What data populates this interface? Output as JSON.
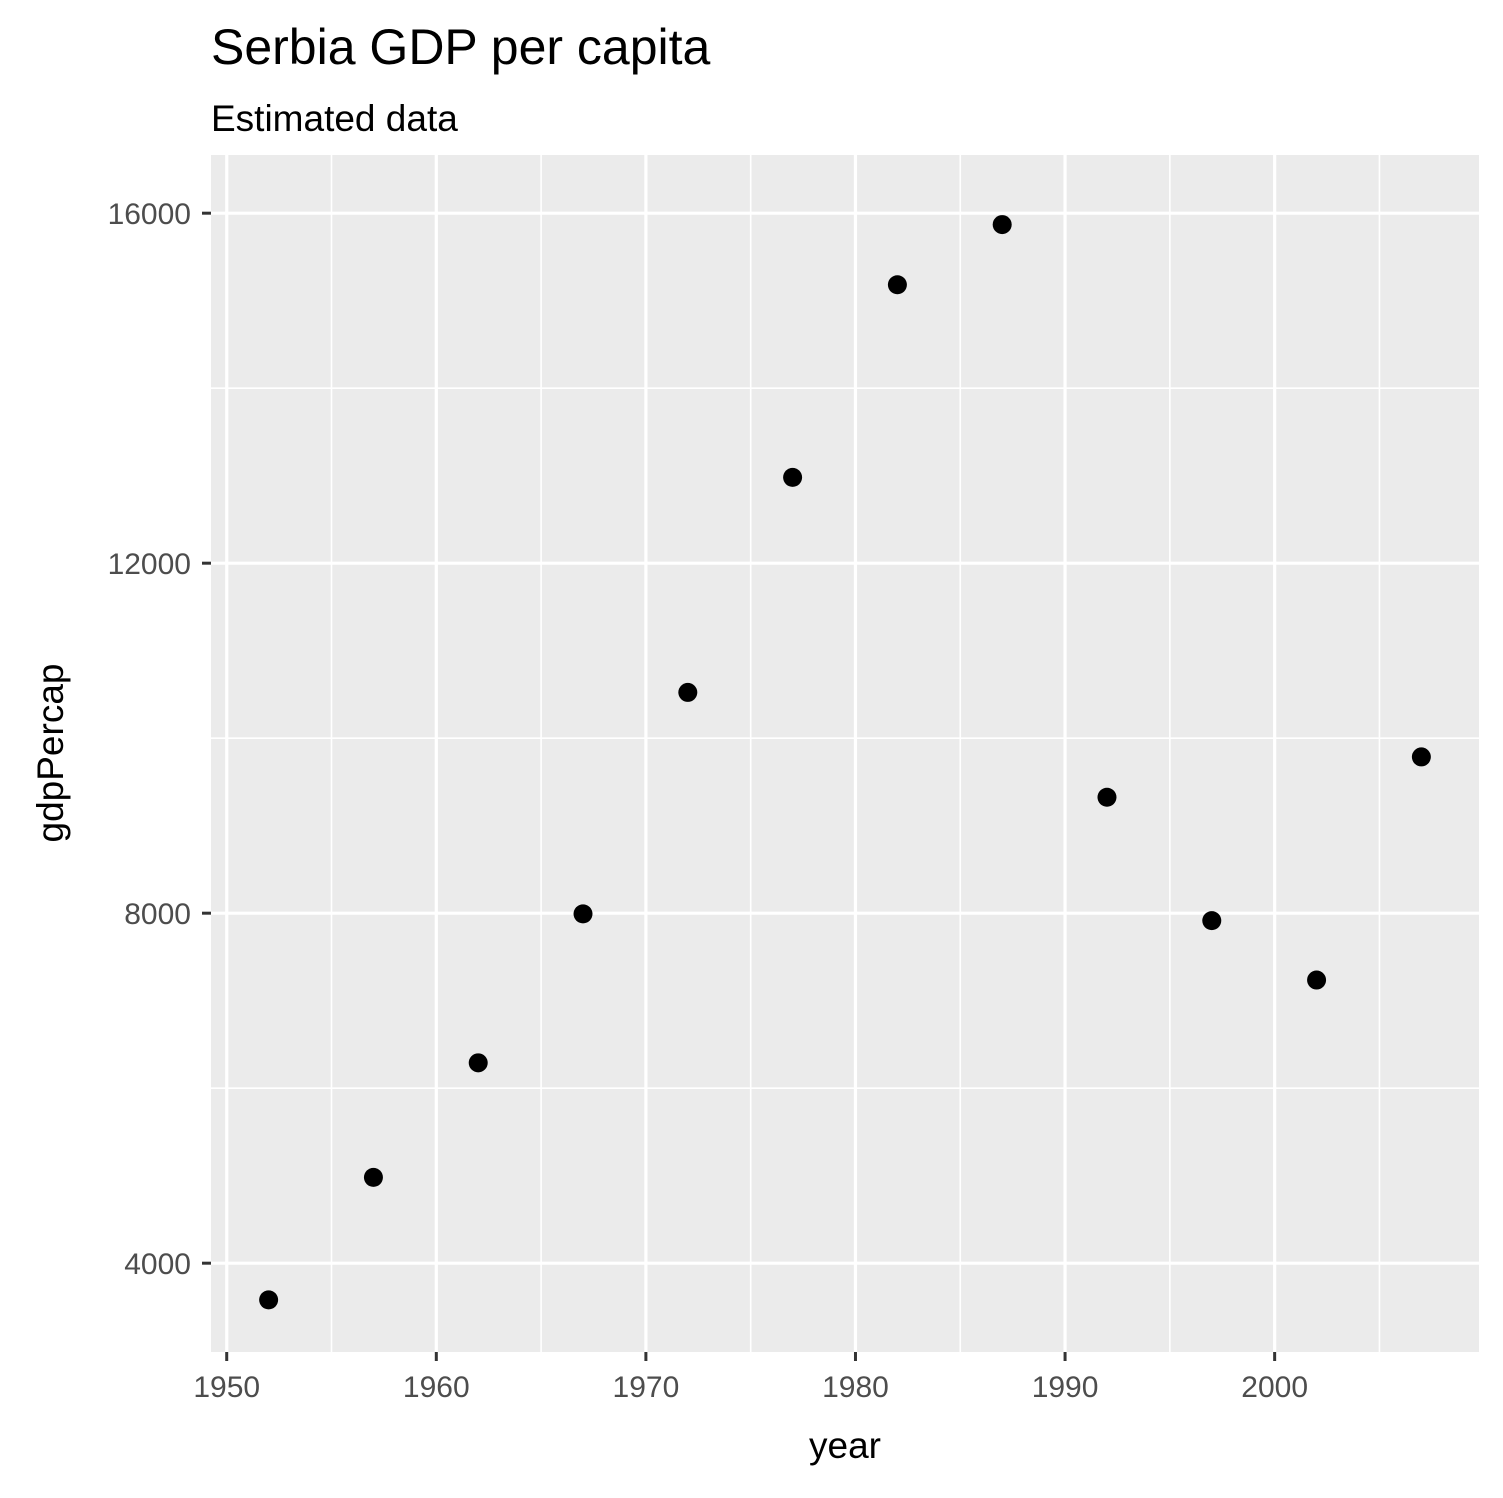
{
  "chart_data": {
    "type": "scatter",
    "title": "Serbia GDP per capita",
    "subtitle": "Estimated data",
    "xlabel": "year",
    "ylabel": "gdpPercap",
    "xlim": [
      1949.25,
      2009.75
    ],
    "ylim": [
      2985,
      16665
    ],
    "x_ticks": [
      1950,
      1960,
      1970,
      1980,
      1990,
      2000
    ],
    "x_tick_labels": [
      "1950",
      "1960",
      "1970",
      "1980",
      "1990",
      "2000"
    ],
    "x_minor_ticks": [
      1955,
      1965,
      1975,
      1985,
      1995,
      2005
    ],
    "y_ticks": [
      4000,
      8000,
      12000,
      16000
    ],
    "y_tick_labels": [
      "4000",
      "8000",
      "12000",
      "16000"
    ],
    "y_minor_ticks": [
      6000,
      10000,
      14000
    ],
    "grid": true,
    "legend": "none",
    "colors": {
      "panel_background": "#EBEBEB",
      "grid": "#FFFFFF",
      "point": "#000000",
      "tick_text": "#4D4D4D",
      "tick_mark": "#333333"
    },
    "series": [
      {
        "x": [
          1952,
          1957,
          1962,
          1967,
          1972,
          1977,
          1982,
          1987,
          1992,
          1997,
          2002,
          2007
        ],
        "y": [
          3581,
          4981,
          6290,
          7992,
          10523,
          12981,
          15182,
          15870,
          9325,
          7915,
          7236,
          9786
        ]
      }
    ]
  }
}
